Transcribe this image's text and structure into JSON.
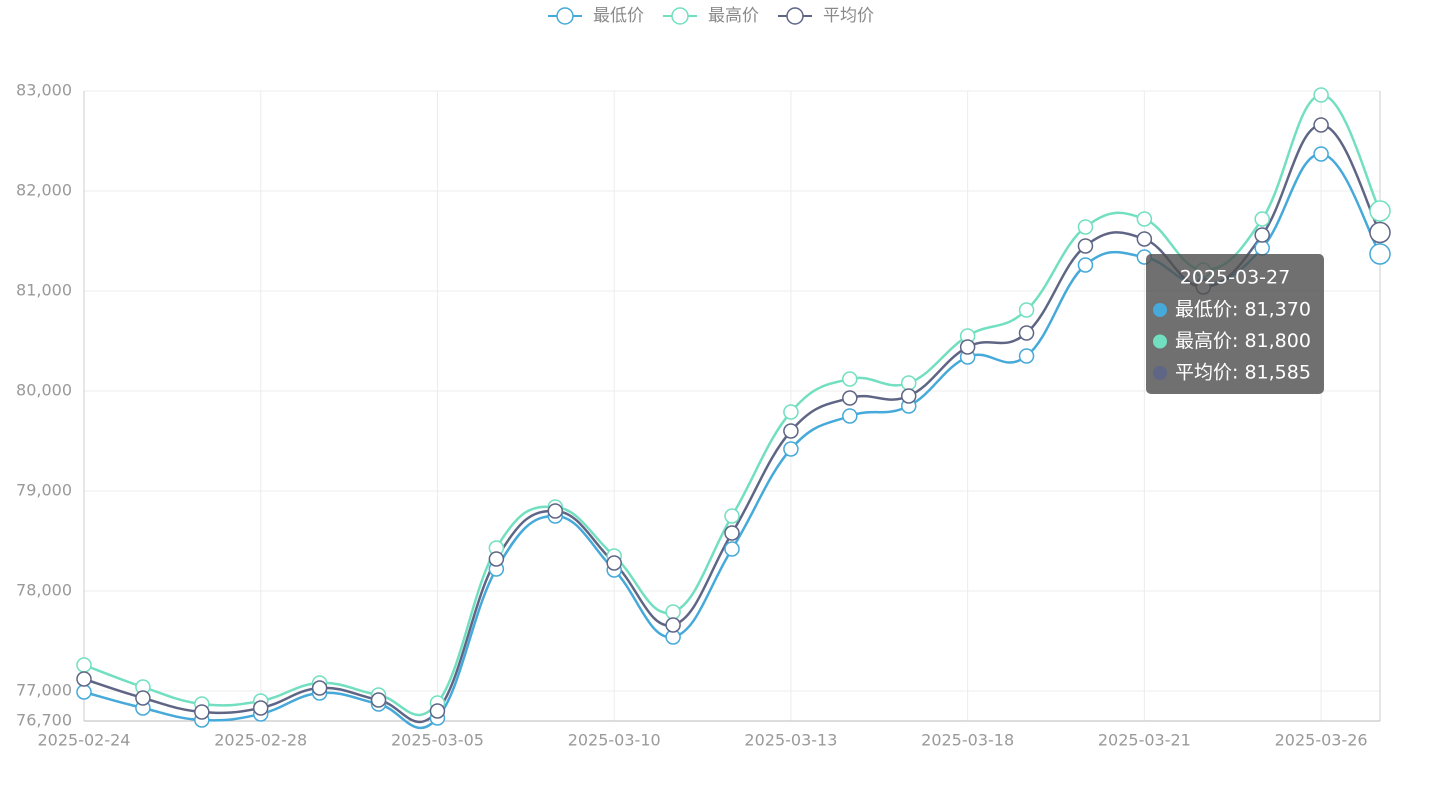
{
  "chart_data": {
    "type": "line",
    "categories": [
      "2025-02-24",
      null,
      null,
      "2025-02-28",
      null,
      null,
      "2025-03-05",
      null,
      null,
      "2025-03-10",
      null,
      null,
      "2025-03-13",
      null,
      null,
      "2025-03-18",
      null,
      null,
      "2025-03-21",
      null,
      null,
      "2025-03-26",
      "2025-03-27"
    ],
    "series": [
      {
        "name": "最低价",
        "color": "#45a9d9",
        "values": [
          76990,
          76830,
          76710,
          76770,
          76980,
          76870,
          76730,
          78220,
          78750,
          78210,
          77540,
          78420,
          79420,
          79750,
          79850,
          80340,
          80350,
          81260,
          81340,
          81060,
          81430,
          82370,
          81370
        ]
      },
      {
        "name": "最高价",
        "color": "#72dfc0",
        "values": [
          77260,
          77040,
          76870,
          76900,
          77080,
          76960,
          76880,
          78430,
          78840,
          78350,
          77790,
          78750,
          79790,
          80120,
          80080,
          80550,
          80810,
          81640,
          81720,
          81210,
          81720,
          82960,
          81800
        ]
      },
      {
        "name": "平均价",
        "color": "#5f6585",
        "values": [
          77120,
          76930,
          76790,
          76830,
          77030,
          76910,
          76800,
          78320,
          78800,
          78280,
          77660,
          78580,
          79600,
          79930,
          79950,
          80440,
          80580,
          81450,
          81520,
          81040,
          81560,
          82660,
          81585
        ]
      }
    ],
    "ylim": [
      76700,
      83000
    ],
    "yticks": [
      {
        "value": 76700,
        "label": "76,700"
      },
      {
        "value": 77000,
        "label": "77,000"
      },
      {
        "value": 78000,
        "label": "78,000"
      },
      {
        "value": 79000,
        "label": "79,000"
      },
      {
        "value": 80000,
        "label": "80,000"
      },
      {
        "value": 81000,
        "label": "81,000"
      },
      {
        "value": 82000,
        "label": "82,000"
      },
      {
        "value": 83000,
        "label": "83,000"
      }
    ],
    "grid": true,
    "smooth": true,
    "legend": "top",
    "tooltip": {
      "labels": [
        "最低价: 81,370",
        "最高价: 81,800",
        "平均价: 81,585"
      ]
    }
  }
}
